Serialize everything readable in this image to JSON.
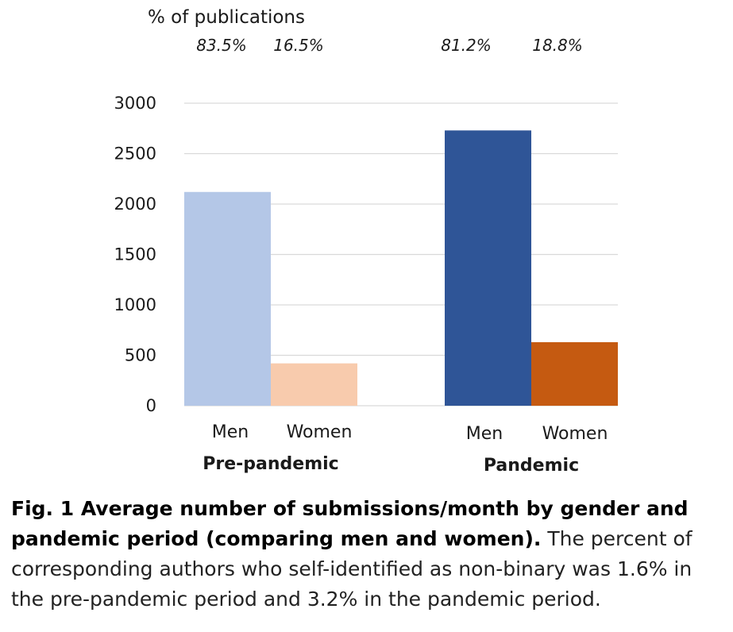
{
  "chart_data": {
    "type": "bar",
    "ylabel": "% of publications",
    "ylim": [
      0,
      3000
    ],
    "yticks": [
      0,
      500,
      1000,
      1500,
      2000,
      2500,
      3000
    ],
    "grid": true,
    "groups": [
      {
        "name": "Pre-pandemic",
        "bars": [
          {
            "category": "Men",
            "value": 2120,
            "percent_label": "83.5%",
            "color": "#b4c7e7"
          },
          {
            "category": "Women",
            "value": 420,
            "percent_label": "16.5%",
            "color": "#f8cbad"
          }
        ]
      },
      {
        "name": "Pandemic",
        "bars": [
          {
            "category": "Men",
            "value": 2730,
            "percent_label": "81.2%",
            "color": "#2f5597"
          },
          {
            "category": "Women",
            "value": 630,
            "percent_label": "18.8%",
            "color": "#c55a11"
          }
        ]
      }
    ]
  },
  "caption": {
    "bold": "Fig. 1 Average number of submissions/month by gender and pandemic period (comparing men and women).",
    "text": " The percent of corresponding authors who self-identified as non-binary was 1.6% in the pre-pandemic period and 3.2% in the pandemic period."
  }
}
